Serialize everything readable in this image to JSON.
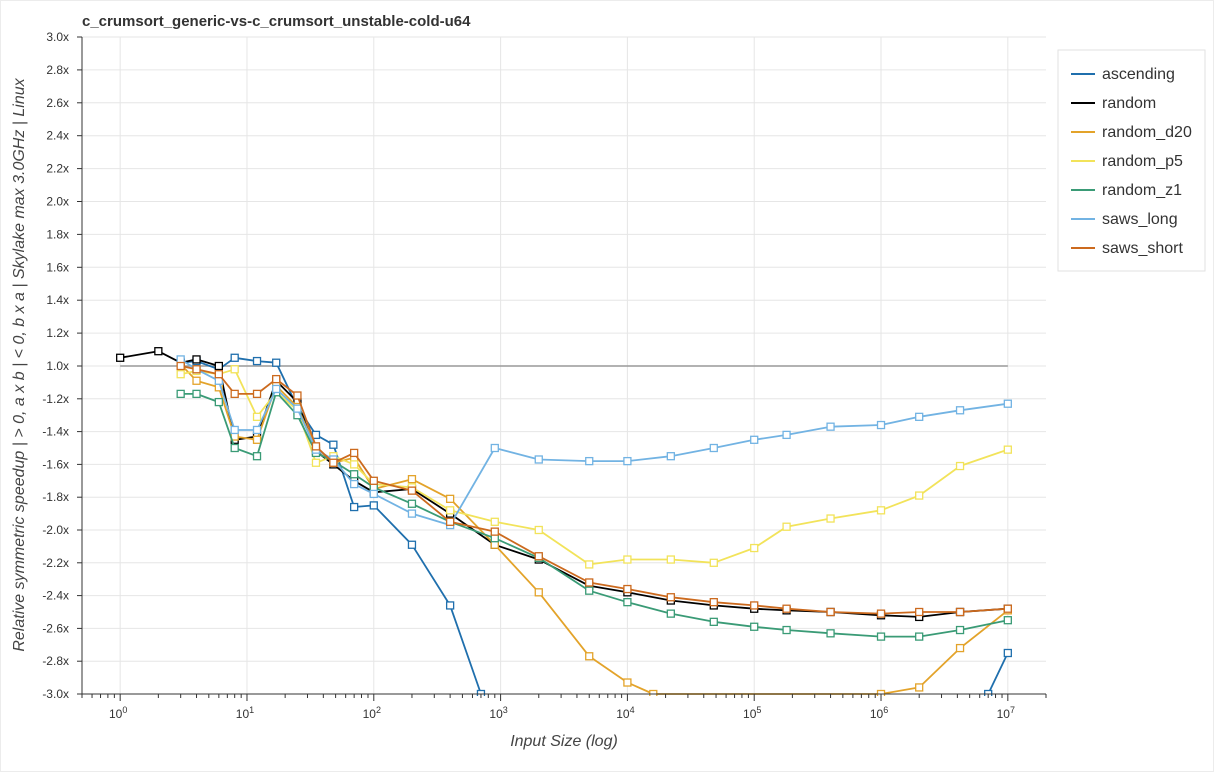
{
  "chart_data": {
    "type": "line",
    "title": "c_crumsort_generic-vs-c_crumsort_unstable-cold-u64",
    "xlabel": "Input Size (log)",
    "ylabel": "Relative symmetric speedup | > 0, a x b | < 0, b x a | Skylake max 3.0GHz | Linux",
    "x_scale": "log",
    "xlim": [
      0.5,
      20000000
    ],
    "ylim": [
      -3.0,
      3.0
    ],
    "grid": true,
    "legend_position": "right",
    "x_ticks": [
      {
        "value": 1,
        "base": "10",
        "exp": "0"
      },
      {
        "value": 10,
        "base": "10",
        "exp": "1"
      },
      {
        "value": 100,
        "base": "10",
        "exp": "2"
      },
      {
        "value": 1000,
        "base": "10",
        "exp": "3"
      },
      {
        "value": 10000,
        "base": "10",
        "exp": "4"
      },
      {
        "value": 100000,
        "base": "10",
        "exp": "5"
      },
      {
        "value": 1000000,
        "base": "10",
        "exp": "6"
      },
      {
        "value": 10000000,
        "base": "10",
        "exp": "7"
      }
    ],
    "y_ticks": [
      {
        "value": 3.0,
        "label": "3.0x"
      },
      {
        "value": 2.8,
        "label": "2.8x"
      },
      {
        "value": 2.6,
        "label": "2.6x"
      },
      {
        "value": 2.4,
        "label": "2.4x"
      },
      {
        "value": 2.2,
        "label": "2.2x"
      },
      {
        "value": 2.0,
        "label": "2.0x"
      },
      {
        "value": 1.8,
        "label": "1.8x"
      },
      {
        "value": 1.6,
        "label": "1.6x"
      },
      {
        "value": 1.4,
        "label": "1.4x"
      },
      {
        "value": 1.2,
        "label": "1.2x"
      },
      {
        "value": 1.0,
        "label": "1.0x"
      },
      {
        "value": -1.2,
        "label": "-1.2x"
      },
      {
        "value": -1.4,
        "label": "-1.4x"
      },
      {
        "value": -1.6,
        "label": "-1.6x"
      },
      {
        "value": -1.8,
        "label": "-1.8x"
      },
      {
        "value": -2.0,
        "label": "-2.0x"
      },
      {
        "value": -2.2,
        "label": "-2.2x"
      },
      {
        "value": -2.4,
        "label": "-2.4x"
      },
      {
        "value": -2.6,
        "label": "-2.6x"
      },
      {
        "value": -2.8,
        "label": "-2.8x"
      },
      {
        "value": -3.0,
        "label": "-3.0x"
      }
    ],
    "baseline": 1.0,
    "series": [
      {
        "name": "ascending",
        "color": "#1f6fad",
        "points": [
          [
            3,
            1.02
          ],
          [
            4,
            1.03
          ],
          [
            6,
            0.98
          ],
          [
            8,
            1.05
          ],
          [
            12,
            1.03
          ],
          [
            17,
            1.02
          ],
          [
            25,
            -1.25
          ],
          [
            35,
            -1.42
          ],
          [
            48,
            -1.48
          ],
          [
            70,
            -1.86
          ],
          [
            100,
            -1.85
          ],
          [
            200,
            -2.09
          ],
          [
            400,
            -2.46
          ],
          [
            700,
            -3.0
          ],
          [
            950,
            -3.3
          ],
          [
            5500000,
            -3.3
          ],
          [
            7000000,
            -3.0
          ],
          [
            10000000,
            -2.75
          ]
        ]
      },
      {
        "name": "random",
        "color": "#000000",
        "points": [
          [
            1,
            1.05
          ],
          [
            2,
            1.09
          ],
          [
            3,
            1.02
          ],
          [
            4,
            1.04
          ],
          [
            6,
            -1.0
          ],
          [
            8,
            -1.45
          ],
          [
            12,
            -1.43
          ],
          [
            17,
            -1.09
          ],
          [
            25,
            -1.22
          ],
          [
            35,
            -1.52
          ],
          [
            48,
            -1.6
          ],
          [
            70,
            -1.7
          ],
          [
            100,
            -1.77
          ],
          [
            200,
            -1.75
          ],
          [
            400,
            -1.9
          ],
          [
            900,
            -2.09
          ],
          [
            2000,
            -2.18
          ],
          [
            5000,
            -2.34
          ],
          [
            10000,
            -2.38
          ],
          [
            22000,
            -2.43
          ],
          [
            48000,
            -2.46
          ],
          [
            100000,
            -2.48
          ],
          [
            180000,
            -2.49
          ],
          [
            400000,
            -2.5
          ],
          [
            1000000,
            -2.52
          ],
          [
            2000000,
            -2.53
          ],
          [
            4200000,
            -2.5
          ],
          [
            10000000,
            -2.48
          ]
        ]
      },
      {
        "name": "random_d20",
        "color": "#e3a32a",
        "points": [
          [
            3,
            1.01
          ],
          [
            4,
            -1.09
          ],
          [
            6,
            -1.13
          ],
          [
            8,
            -1.43
          ],
          [
            12,
            -1.45
          ],
          [
            17,
            -1.12
          ],
          [
            25,
            -1.25
          ],
          [
            35,
            -1.5
          ],
          [
            48,
            -1.59
          ],
          [
            70,
            -1.56
          ],
          [
            100,
            -1.75
          ],
          [
            200,
            -1.69
          ],
          [
            400,
            -1.81
          ],
          [
            900,
            -2.09
          ],
          [
            2000,
            -2.38
          ],
          [
            5000,
            -2.77
          ],
          [
            10000,
            -2.93
          ],
          [
            16000,
            -3.0
          ],
          [
            1000000,
            -3.0
          ],
          [
            2000000,
            -2.96
          ],
          [
            4200000,
            -2.72
          ],
          [
            10000000,
            -2.49
          ]
        ]
      },
      {
        "name": "random_p5",
        "color": "#f2e35a",
        "points": [
          [
            3,
            -1.05
          ],
          [
            4,
            -1.03
          ],
          [
            6,
            -1.05
          ],
          [
            8,
            -1.02
          ],
          [
            12,
            -1.31
          ],
          [
            17,
            -1.16
          ],
          [
            25,
            -1.27
          ],
          [
            35,
            -1.59
          ],
          [
            48,
            -1.55
          ],
          [
            70,
            -1.6
          ],
          [
            100,
            -1.72
          ],
          [
            200,
            -1.74
          ],
          [
            400,
            -1.88
          ],
          [
            900,
            -1.95
          ],
          [
            2000,
            -2.0
          ],
          [
            5000,
            -2.21
          ],
          [
            10000,
            -2.18
          ],
          [
            22000,
            -2.18
          ],
          [
            48000,
            -2.2
          ],
          [
            100000,
            -2.11
          ],
          [
            180000,
            -1.98
          ],
          [
            400000,
            -1.93
          ],
          [
            1000000,
            -1.88
          ],
          [
            2000000,
            -1.79
          ],
          [
            4200000,
            -1.61
          ],
          [
            10000000,
            -1.51
          ]
        ]
      },
      {
        "name": "random_z1",
        "color": "#3a9b76",
        "points": [
          [
            3,
            -1.17
          ],
          [
            4,
            -1.17
          ],
          [
            6,
            -1.22
          ],
          [
            8,
            -1.5
          ],
          [
            12,
            -1.55
          ],
          [
            17,
            -1.16
          ],
          [
            25,
            -1.3
          ],
          [
            35,
            -1.53
          ],
          [
            48,
            -1.58
          ],
          [
            70,
            -1.66
          ],
          [
            100,
            -1.74
          ],
          [
            200,
            -1.84
          ],
          [
            400,
            -1.95
          ],
          [
            900,
            -2.05
          ],
          [
            2000,
            -2.17
          ],
          [
            5000,
            -2.37
          ],
          [
            10000,
            -2.44
          ],
          [
            22000,
            -2.51
          ],
          [
            48000,
            -2.56
          ],
          [
            100000,
            -2.59
          ],
          [
            180000,
            -2.61
          ],
          [
            400000,
            -2.63
          ],
          [
            1000000,
            -2.65
          ],
          [
            2000000,
            -2.65
          ],
          [
            4200000,
            -2.61
          ],
          [
            10000000,
            -2.55
          ]
        ]
      },
      {
        "name": "saws_long",
        "color": "#72b3e3",
        "points": [
          [
            3,
            1.04
          ],
          [
            4,
            -1.02
          ],
          [
            6,
            -1.09
          ],
          [
            8,
            -1.39
          ],
          [
            12,
            -1.39
          ],
          [
            17,
            -1.14
          ],
          [
            25,
            -1.26
          ],
          [
            35,
            -1.51
          ],
          [
            48,
            -1.57
          ],
          [
            70,
            -1.72
          ],
          [
            100,
            -1.78
          ],
          [
            200,
            -1.9
          ],
          [
            400,
            -1.97
          ],
          [
            900,
            -1.5
          ],
          [
            2000,
            -1.57
          ],
          [
            5000,
            -1.58
          ],
          [
            10000,
            -1.58
          ],
          [
            22000,
            -1.55
          ],
          [
            48000,
            -1.5
          ],
          [
            100000,
            -1.45
          ],
          [
            180000,
            -1.42
          ],
          [
            400000,
            -1.37
          ],
          [
            1000000,
            -1.36
          ],
          [
            2000000,
            -1.31
          ],
          [
            4200000,
            -1.27
          ],
          [
            10000000,
            -1.23
          ]
        ]
      },
      {
        "name": "saws_short",
        "color": "#cc6a1e",
        "points": [
          [
            3,
            1.0
          ],
          [
            4,
            -1.02
          ],
          [
            6,
            -1.05
          ],
          [
            8,
            -1.17
          ],
          [
            12,
            -1.17
          ],
          [
            17,
            -1.08
          ],
          [
            25,
            -1.18
          ],
          [
            35,
            -1.49
          ],
          [
            48,
            -1.59
          ],
          [
            70,
            -1.53
          ],
          [
            100,
            -1.7
          ],
          [
            200,
            -1.76
          ],
          [
            400,
            -1.95
          ],
          [
            900,
            -2.01
          ],
          [
            2000,
            -2.16
          ],
          [
            5000,
            -2.32
          ],
          [
            10000,
            -2.36
          ],
          [
            22000,
            -2.41
          ],
          [
            48000,
            -2.44
          ],
          [
            100000,
            -2.46
          ],
          [
            180000,
            -2.48
          ],
          [
            400000,
            -2.5
          ],
          [
            1000000,
            -2.51
          ],
          [
            2000000,
            -2.5
          ],
          [
            4200000,
            -2.5
          ],
          [
            10000000,
            -2.48
          ]
        ]
      }
    ]
  }
}
